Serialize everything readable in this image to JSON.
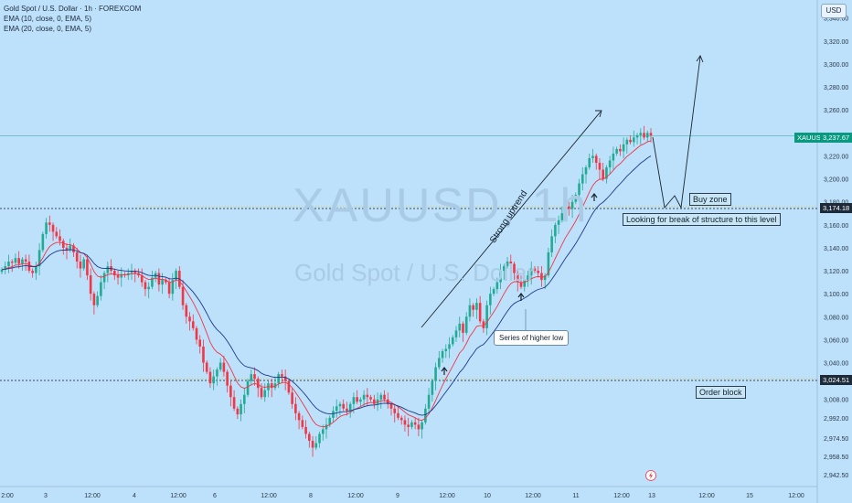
{
  "header": {
    "symbol_line": "Gold Spot / U.S. Dollar · 1h · FOREXCOM",
    "ema1": "EMA (10, close, 0, EMA, 5)",
    "ema2": "EMA (20, close, 0, EMA, 5)",
    "currency_button": "USD"
  },
  "watermark": {
    "ticker": "XAUUSD, 1h",
    "name": "Gold Spot / U.S. Dollar"
  },
  "annotations": {
    "trend_label": "Strong uptrend",
    "higher_low": "Series of higher low",
    "buy_zone": "Buy zone",
    "bos": "Looking for break of structure to this level",
    "order_block": "Order block"
  },
  "price_tags": {
    "current_symbol": "XAUUSD",
    "current_price": "3,237.67",
    "level_upper": "3,174.18",
    "level_lower": "3,024.51"
  },
  "colors": {
    "up": "#22ab94",
    "down": "#f23645",
    "ema10": "#f23645",
    "ema20": "#1e3a8a",
    "current_tag": "#089981",
    "level_line": "#e3c94a",
    "level_tag": "#1c2a3a"
  },
  "chart_data": {
    "type": "candlestick",
    "y_ticks": [
      2942.5,
      2958.5,
      2974.5,
      2992,
      3008,
      3024.51,
      3040,
      3060,
      3080,
      3100,
      3120,
      3140,
      3160,
      3174.18,
      3180,
      3200,
      3220,
      3237.67,
      3260,
      3280,
      3300,
      3320,
      3340
    ],
    "y_tick_labels": [
      "2,942.50",
      "2,958.50",
      "2,974.50",
      "2,992.00",
      "3,008.00",
      "3,024.51",
      "3,040.00",
      "3,060.00",
      "3,080.00",
      "3,100.00",
      "3,120.00",
      "3,140.00",
      "3,160.00",
      "3,174.18",
      "3,180.00",
      "3,200.00",
      "3,220.00",
      "3,237.67",
      "3,260.00",
      "3,280.00",
      "3,300.00",
      "3,320.00",
      "3,340.00"
    ],
    "x_ticks": [
      "2:00",
      "3",
      "12:00",
      "4",
      "12:00",
      "6",
      "12:00",
      "8",
      "12:00",
      "9",
      "12:00",
      "10",
      "12:00",
      "11",
      "12:00",
      "13",
      "12:00",
      "15",
      "12:00"
    ],
    "levels": [
      3174.18,
      3024.51
    ],
    "current_price": 3237.67,
    "closes": [
      3121,
      3124,
      3128,
      3127,
      3131,
      3126,
      3130,
      3128,
      3120,
      3118,
      3124,
      3138,
      3152,
      3162,
      3160,
      3154,
      3150,
      3146,
      3140,
      3138,
      3142,
      3136,
      3128,
      3122,
      3130,
      3116,
      3100,
      3090,
      3098,
      3110,
      3118,
      3124,
      3120,
      3116,
      3114,
      3117,
      3116,
      3118,
      3120,
      3118,
      3116,
      3110,
      3104,
      3106,
      3114,
      3118,
      3108,
      3112,
      3110,
      3100,
      3112,
      3120,
      3106,
      3090,
      3080,
      3076,
      3070,
      3060,
      3054,
      3040,
      3032,
      3022,
      3028,
      3034,
      3040,
      3032,
      3020,
      3010,
      3000,
      2995,
      3004,
      3012,
      3024,
      3030,
      3026,
      3018,
      3010,
      3016,
      3022,
      3018,
      3022,
      3030,
      3028,
      3024,
      3014,
      3004,
      2996,
      2990,
      2984,
      2978,
      2972,
      2966,
      2970,
      2978,
      2982,
      2986,
      2992,
      2998,
      3002,
      3004,
      3000,
      2998,
      3004,
      3010,
      3006,
      3008,
      3012,
      3010,
      3008,
      3004,
      3008,
      3012,
      3008,
      3004,
      3000,
      2996,
      2992,
      2990,
      2986,
      2984,
      2988,
      2986,
      2982,
      2988,
      3000,
      3012,
      3024,
      3036,
      3044,
      3050,
      3052,
      3056,
      3062,
      3068,
      3074,
      3066,
      3080,
      3090,
      3086,
      3092,
      3076,
      3070,
      3090,
      3100,
      3104,
      3110,
      3120,
      3124,
      3128,
      3126,
      3118,
      3110,
      3106,
      3112,
      3116,
      3122,
      3120,
      3118,
      3112,
      3116,
      3136,
      3150,
      3160,
      3164,
      3170,
      3176,
      3174,
      3180,
      3186,
      3196,
      3204,
      3210,
      3218,
      3220,
      3214,
      3208,
      3200,
      3210,
      3216,
      3222,
      3226,
      3224,
      3230,
      3234,
      3232,
      3236,
      3238,
      3240,
      3236,
      3240,
      3237.67
    ]
  }
}
